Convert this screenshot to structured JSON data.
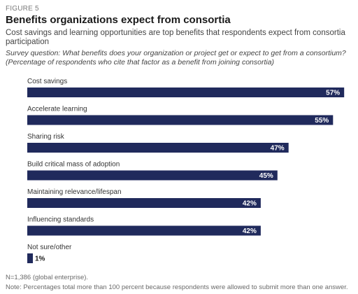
{
  "figure_label": "FIGURE 5",
  "title": "Benefits organizations expect from consortia",
  "subtitle": "Cost savings and learning opportunities are top benefits that respondents expect from consortia participation",
  "question": "Survey question: What benefits does your organization or project get or expect to get from a consortium? (Percentage of respondents who cite that factor as a benefit from joining consortia)",
  "source": "N=1,386 (global enterprise).",
  "note": "Note: Percentages total more than 100 percent because respondents were allowed to submit more than one answer.",
  "colors": {
    "bar": "#202a5c",
    "value_text_on_bar": "#ffffff",
    "value_text_outside": "#1a1a1a"
  },
  "chart_data": {
    "type": "bar",
    "orientation": "horizontal",
    "categories": [
      "Cost savings",
      "Accelerate learning",
      "Sharing risk",
      "Build critical mass of adoption",
      "Maintaining relevance/lifespan",
      "Influencing standards",
      "Not sure/other"
    ],
    "values": [
      57,
      55,
      47,
      45,
      42,
      42,
      1
    ],
    "value_labels": [
      "57%",
      "55%",
      "47%",
      "45%",
      "42%",
      "42%",
      "1%"
    ],
    "unit": "%",
    "xlim": [
      0,
      60
    ],
    "grid": false,
    "legend": "none"
  }
}
